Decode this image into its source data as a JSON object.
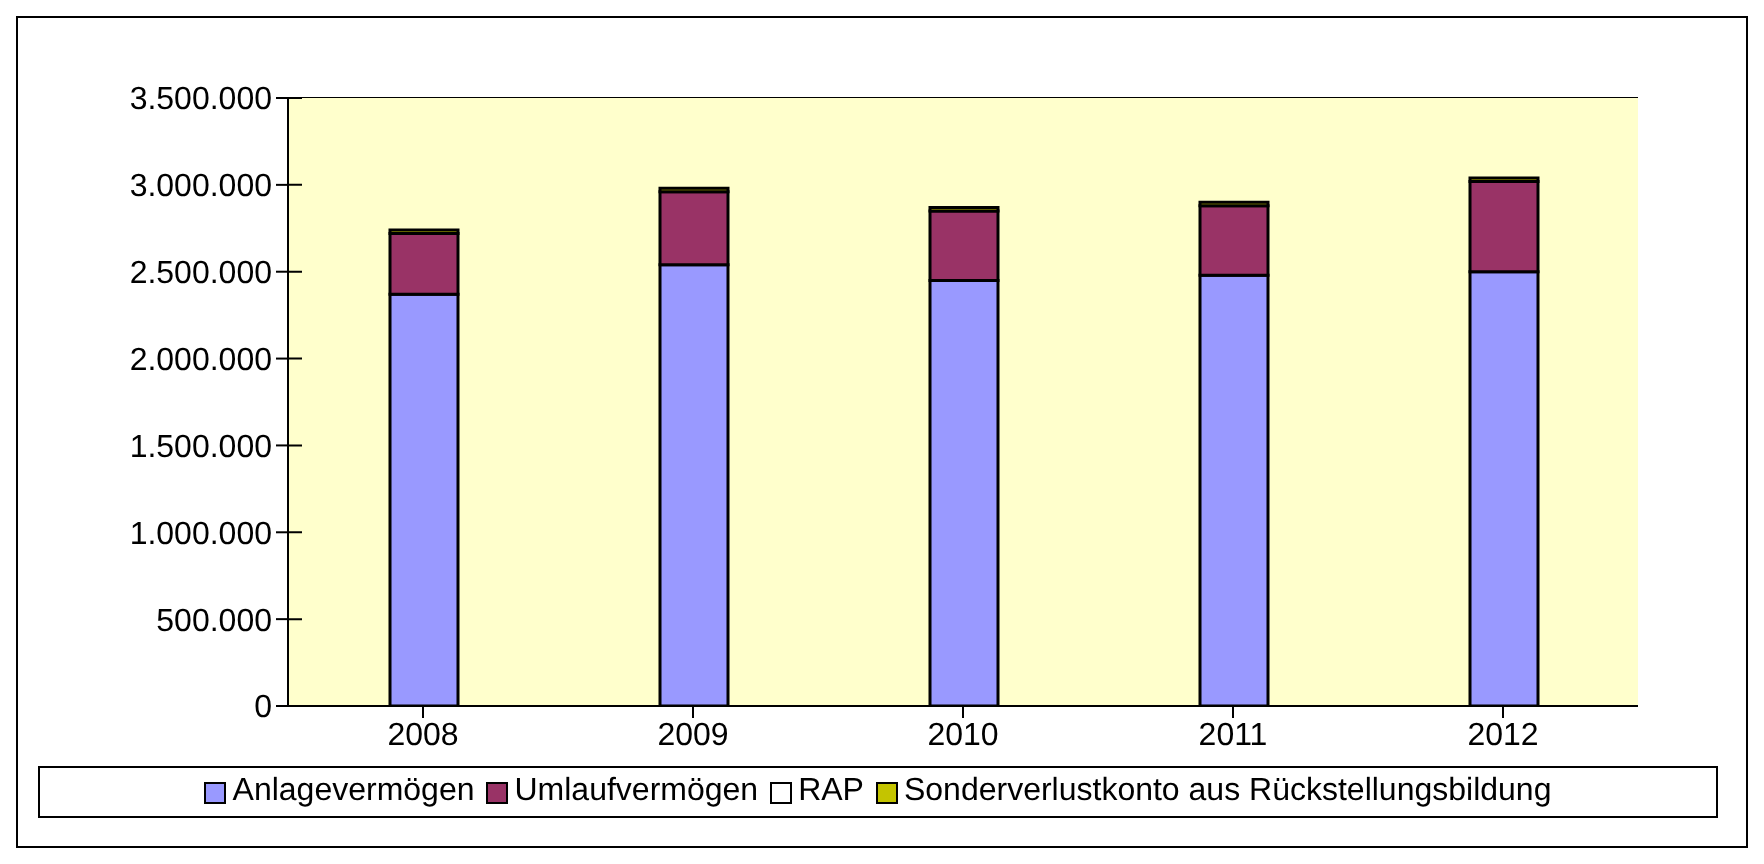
{
  "chart_data": {
    "type": "bar",
    "stacked": true,
    "categories": [
      "2008",
      "2009",
      "2010",
      "2011",
      "2012"
    ],
    "series": [
      {
        "name": "Anlagevermögen",
        "color": "#9999ff",
        "values": [
          2370000,
          2540000,
          2450000,
          2480000,
          2500000
        ]
      },
      {
        "name": "Umlaufvermögen",
        "color": "#993366",
        "values": [
          350000,
          420000,
          400000,
          400000,
          520000
        ]
      },
      {
        "name": "RAP",
        "color": "#ffffff",
        "values": [
          0,
          0,
          0,
          0,
          0
        ]
      },
      {
        "name": "Sonderverlustkonto aus Rückstellungsbildung",
        "color": "#c4c400",
        "values": [
          20000,
          20000,
          20000,
          20000,
          20000
        ]
      }
    ],
    "ylim": [
      0,
      3500000
    ],
    "yticks": [
      {
        "value": 0,
        "label": "0"
      },
      {
        "value": 500000,
        "label": "500.000"
      },
      {
        "value": 1000000,
        "label": "1.000.000"
      },
      {
        "value": 1500000,
        "label": "1.500.000"
      },
      {
        "value": 2000000,
        "label": "2.000.000"
      },
      {
        "value": 2500000,
        "label": "2.500.000"
      },
      {
        "value": 3000000,
        "label": "3.000.000"
      },
      {
        "value": 3500000,
        "label": "3.500.000"
      }
    ],
    "grid": "y",
    "legend": "bottom"
  }
}
